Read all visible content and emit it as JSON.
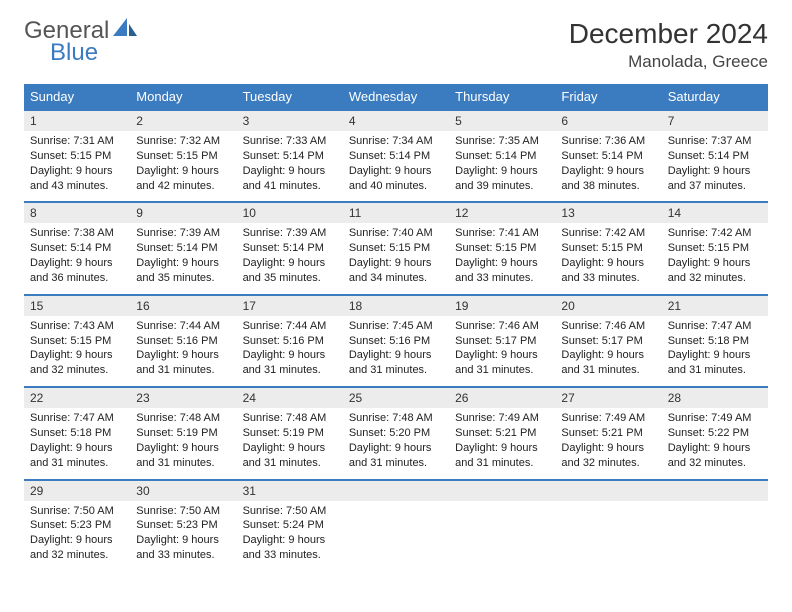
{
  "logo": {
    "line1": "General",
    "line2": "Blue"
  },
  "title": "December 2024",
  "subtitle": "Manolada, Greece",
  "colors": {
    "header_bg": "#3b7bbf",
    "header_text": "#ffffff",
    "daynum_bg": "#ececec",
    "border": "#3b7bbf",
    "text": "#222222",
    "page_bg": "#ffffff"
  },
  "weekdays": [
    "Sunday",
    "Monday",
    "Tuesday",
    "Wednesday",
    "Thursday",
    "Friday",
    "Saturday"
  ],
  "weeks": [
    [
      {
        "n": "1",
        "sr": "7:31 AM",
        "ss": "5:15 PM",
        "dl": "9 hours and 43 minutes."
      },
      {
        "n": "2",
        "sr": "7:32 AM",
        "ss": "5:15 PM",
        "dl": "9 hours and 42 minutes."
      },
      {
        "n": "3",
        "sr": "7:33 AM",
        "ss": "5:14 PM",
        "dl": "9 hours and 41 minutes."
      },
      {
        "n": "4",
        "sr": "7:34 AM",
        "ss": "5:14 PM",
        "dl": "9 hours and 40 minutes."
      },
      {
        "n": "5",
        "sr": "7:35 AM",
        "ss": "5:14 PM",
        "dl": "9 hours and 39 minutes."
      },
      {
        "n": "6",
        "sr": "7:36 AM",
        "ss": "5:14 PM",
        "dl": "9 hours and 38 minutes."
      },
      {
        "n": "7",
        "sr": "7:37 AM",
        "ss": "5:14 PM",
        "dl": "9 hours and 37 minutes."
      }
    ],
    [
      {
        "n": "8",
        "sr": "7:38 AM",
        "ss": "5:14 PM",
        "dl": "9 hours and 36 minutes."
      },
      {
        "n": "9",
        "sr": "7:39 AM",
        "ss": "5:14 PM",
        "dl": "9 hours and 35 minutes."
      },
      {
        "n": "10",
        "sr": "7:39 AM",
        "ss": "5:14 PM",
        "dl": "9 hours and 35 minutes."
      },
      {
        "n": "11",
        "sr": "7:40 AM",
        "ss": "5:15 PM",
        "dl": "9 hours and 34 minutes."
      },
      {
        "n": "12",
        "sr": "7:41 AM",
        "ss": "5:15 PM",
        "dl": "9 hours and 33 minutes."
      },
      {
        "n": "13",
        "sr": "7:42 AM",
        "ss": "5:15 PM",
        "dl": "9 hours and 33 minutes."
      },
      {
        "n": "14",
        "sr": "7:42 AM",
        "ss": "5:15 PM",
        "dl": "9 hours and 32 minutes."
      }
    ],
    [
      {
        "n": "15",
        "sr": "7:43 AM",
        "ss": "5:15 PM",
        "dl": "9 hours and 32 minutes."
      },
      {
        "n": "16",
        "sr": "7:44 AM",
        "ss": "5:16 PM",
        "dl": "9 hours and 31 minutes."
      },
      {
        "n": "17",
        "sr": "7:44 AM",
        "ss": "5:16 PM",
        "dl": "9 hours and 31 minutes."
      },
      {
        "n": "18",
        "sr": "7:45 AM",
        "ss": "5:16 PM",
        "dl": "9 hours and 31 minutes."
      },
      {
        "n": "19",
        "sr": "7:46 AM",
        "ss": "5:17 PM",
        "dl": "9 hours and 31 minutes."
      },
      {
        "n": "20",
        "sr": "7:46 AM",
        "ss": "5:17 PM",
        "dl": "9 hours and 31 minutes."
      },
      {
        "n": "21",
        "sr": "7:47 AM",
        "ss": "5:18 PM",
        "dl": "9 hours and 31 minutes."
      }
    ],
    [
      {
        "n": "22",
        "sr": "7:47 AM",
        "ss": "5:18 PM",
        "dl": "9 hours and 31 minutes."
      },
      {
        "n": "23",
        "sr": "7:48 AM",
        "ss": "5:19 PM",
        "dl": "9 hours and 31 minutes."
      },
      {
        "n": "24",
        "sr": "7:48 AM",
        "ss": "5:19 PM",
        "dl": "9 hours and 31 minutes."
      },
      {
        "n": "25",
        "sr": "7:48 AM",
        "ss": "5:20 PM",
        "dl": "9 hours and 31 minutes."
      },
      {
        "n": "26",
        "sr": "7:49 AM",
        "ss": "5:21 PM",
        "dl": "9 hours and 31 minutes."
      },
      {
        "n": "27",
        "sr": "7:49 AM",
        "ss": "5:21 PM",
        "dl": "9 hours and 32 minutes."
      },
      {
        "n": "28",
        "sr": "7:49 AM",
        "ss": "5:22 PM",
        "dl": "9 hours and 32 minutes."
      }
    ],
    [
      {
        "n": "29",
        "sr": "7:50 AM",
        "ss": "5:23 PM",
        "dl": "9 hours and 32 minutes."
      },
      {
        "n": "30",
        "sr": "7:50 AM",
        "ss": "5:23 PM",
        "dl": "9 hours and 33 minutes."
      },
      {
        "n": "31",
        "sr": "7:50 AM",
        "ss": "5:24 PM",
        "dl": "9 hours and 33 minutes."
      },
      null,
      null,
      null,
      null
    ]
  ],
  "labels": {
    "sunrise": "Sunrise:",
    "sunset": "Sunset:",
    "daylight": "Daylight:"
  }
}
